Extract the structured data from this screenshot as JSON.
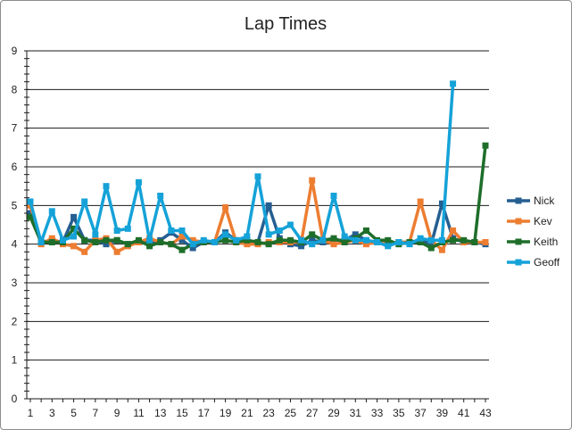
{
  "chart_data": {
    "type": "line",
    "title": "Lap Times",
    "xlabel": "",
    "ylabel": "",
    "ylim": [
      0,
      9
    ],
    "yticks": [
      "0",
      "1",
      "2",
      "3",
      "4",
      "5",
      "6",
      "7",
      "8",
      "9"
    ],
    "xtick_labels": [
      "1",
      "3",
      "5",
      "7",
      "9",
      "11",
      "13",
      "15",
      "17",
      "19",
      "21",
      "23",
      "25",
      "27",
      "29",
      "31",
      "33",
      "35",
      "37",
      "39",
      "41",
      "43"
    ],
    "grid": "horizontal",
    "legend_position": "right",
    "x": [
      1,
      2,
      3,
      4,
      5,
      6,
      7,
      8,
      9,
      10,
      11,
      12,
      13,
      14,
      15,
      16,
      17,
      18,
      19,
      20,
      21,
      22,
      23,
      24,
      25,
      26,
      27,
      28,
      29,
      30,
      31,
      32,
      33,
      34,
      35,
      36,
      37,
      38,
      39,
      40,
      41,
      42,
      43
    ],
    "series": [
      {
        "name": "Nick",
        "color": "#255e91",
        "values": [
          4.8,
          4.05,
          4.1,
          4.05,
          4.7,
          4.1,
          4.1,
          4.0,
          4.1,
          4.0,
          4.05,
          4.05,
          4.1,
          4.3,
          4.1,
          3.9,
          4.05,
          4.05,
          4.3,
          4.1,
          4.1,
          4.05,
          5.0,
          4.15,
          4.0,
          3.95,
          4.1,
          4.05,
          4.1,
          4.1,
          4.25,
          4.1,
          4.05,
          4.0,
          4.05,
          4.05,
          4.1,
          4.0,
          5.05,
          4.15,
          4.05,
          4.05,
          4.0
        ]
      },
      {
        "name": "Kev",
        "color": "#ed7d31",
        "values": [
          5.0,
          4.0,
          4.15,
          4.0,
          3.95,
          3.8,
          4.1,
          4.15,
          3.8,
          3.95,
          4.05,
          4.15,
          4.05,
          4.0,
          4.2,
          4.1,
          4.05,
          4.05,
          4.95,
          4.05,
          4.0,
          4.0,
          4.05,
          4.05,
          4.05,
          4.05,
          5.65,
          4.1,
          4.0,
          4.05,
          4.1,
          4.0,
          4.05,
          4.0,
          4.05,
          4.05,
          5.1,
          4.1,
          3.85,
          4.35,
          4.05,
          4.05,
          4.05
        ]
      },
      {
        "name": "Keith",
        "color": "#1e6e2a",
        "values": [
          4.7,
          4.05,
          4.05,
          4.05,
          4.4,
          4.1,
          4.05,
          4.1,
          4.1,
          4.0,
          4.1,
          3.95,
          4.05,
          4.0,
          3.85,
          4.0,
          4.05,
          4.05,
          4.1,
          4.05,
          4.1,
          4.05,
          4.0,
          4.1,
          4.1,
          4.05,
          4.25,
          4.1,
          4.15,
          4.05,
          4.15,
          4.35,
          4.1,
          4.1,
          4.0,
          4.05,
          4.05,
          3.9,
          4.05,
          4.1,
          4.1,
          4.05,
          6.55
        ]
      },
      {
        "name": "Geoff",
        "color": "#15a2d8",
        "values": [
          5.1,
          4.05,
          4.85,
          4.1,
          4.2,
          5.1,
          4.25,
          5.5,
          4.35,
          4.4,
          5.6,
          4.1,
          5.25,
          4.35,
          4.35,
          4.0,
          4.1,
          4.05,
          4.25,
          4.1,
          4.2,
          5.75,
          4.25,
          4.35,
          4.5,
          4.1,
          4.0,
          4.1,
          5.25,
          4.2,
          4.1,
          4.1,
          4.05,
          3.95,
          4.05,
          4.0,
          4.15,
          4.1,
          4.1,
          8.15,
          null,
          null,
          null
        ]
      }
    ]
  }
}
